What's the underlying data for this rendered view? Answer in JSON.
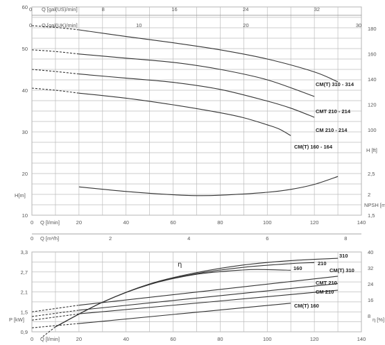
{
  "top_axis_us": {
    "label": "Q [gal(US)/min]",
    "ticks": [
      "0",
      "8",
      "16",
      "24",
      "32"
    ],
    "values": [
      0,
      8,
      16,
      24,
      32
    ]
  },
  "top_axis_uk": {
    "label": "Q [gal(UK)/min]",
    "ticks": [
      "0",
      "10",
      "20",
      "30"
    ],
    "values": [
      0,
      10,
      20,
      30
    ]
  },
  "mid_axis_m3h": {
    "label": "Q [m³/h]",
    "ticks": [
      "0",
      "2",
      "4",
      "6",
      "8"
    ],
    "values": [
      0,
      2,
      4,
      6,
      8
    ]
  },
  "chart_data": [
    {
      "type": "line",
      "title": "",
      "xlabel": "Q [l/min]",
      "ylabel": "H[m]",
      "ylabel_right": "H [ft]",
      "ylabel_right2": "NPSH [m]",
      "xlim": [
        0,
        140
      ],
      "ylim": [
        10,
        60
      ],
      "x_ticks": [
        "0",
        "20",
        "40",
        "60",
        "80",
        "100",
        "120",
        "140"
      ],
      "y_ticks": [
        "10",
        "20",
        "30",
        "40",
        "50",
        "60"
      ],
      "right_ft_ticks": [
        "100",
        "120",
        "140",
        "160",
        "180"
      ],
      "right_npsh_ticks": [
        "1,5",
        "2",
        "2,5"
      ],
      "series": [
        {
          "name": "CM(T) 310 - 314",
          "x": [
            20,
            40,
            60,
            80,
            100,
            120,
            130
          ],
          "y": [
            54.5,
            52.9,
            51.4,
            49.7,
            47.5,
            44.4,
            42.0
          ],
          "extrap_x": [
            0,
            10,
            20
          ],
          "extrap_y": [
            55.5,
            55.1,
            54.5
          ]
        },
        {
          "name": "CMT 210 - 214",
          "x": [
            20,
            40,
            60,
            80,
            100,
            120
          ],
          "y": [
            48.7,
            47.7,
            46.7,
            45.0,
            42.5,
            38.5
          ],
          "extrap_x": [
            0,
            10,
            20
          ],
          "extrap_y": [
            49.7,
            49.3,
            48.7
          ]
        },
        {
          "name": "CM 210 - 214",
          "x": [
            20,
            40,
            60,
            80,
            100,
            110,
            120
          ],
          "y": [
            43.9,
            42.9,
            41.9,
            40.2,
            37.4,
            35.7,
            33.5
          ],
          "extrap_x": [
            0,
            10,
            20
          ],
          "extrap_y": [
            45.0,
            44.5,
            43.9
          ]
        },
        {
          "name": "CM(T) 160 - 164",
          "x": [
            20,
            40,
            60,
            80,
            90,
            100,
            105,
            110
          ],
          "y": [
            39.3,
            38.1,
            36.5,
            34.6,
            33.4,
            31.7,
            30.7,
            29.1
          ],
          "extrap_x": [
            0,
            10,
            20
          ],
          "extrap_y": [
            40.5,
            40.0,
            39.3
          ]
        },
        {
          "name": "NPSH",
          "x": [
            20,
            40,
            60,
            70,
            80,
            100,
            110,
            120,
            130
          ],
          "y": [
            16.8,
            15.7,
            14.9,
            14.7,
            14.8,
            15.5,
            16.2,
            17.4,
            19.3
          ]
        }
      ]
    },
    {
      "type": "line",
      "title": "",
      "xlabel": "Q [l/min]",
      "ylabel": "P [kW]",
      "ylabel_right": "η [%]",
      "xlim": [
        0,
        140
      ],
      "ylim": [
        0.9,
        3.3
      ],
      "x_ticks": [
        "0",
        "20",
        "40",
        "60",
        "80",
        "100",
        "120",
        "140"
      ],
      "y_ticks": [
        "0,9",
        "1,5",
        "2,1",
        "2,7",
        "3,3"
      ],
      "right_eta_ticks": [
        "8",
        "16",
        "24",
        "32",
        "40"
      ],
      "eta_label": "η",
      "series": [
        {
          "name": "310",
          "x": [
            10,
            30,
            50,
            70,
            90,
            110,
            130
          ],
          "y": [
            1.05,
            1.79,
            2.34,
            2.68,
            2.91,
            3.04,
            3.11
          ],
          "kind": "eta"
        },
        {
          "name": "210",
          "x": [
            10,
            30,
            50,
            70,
            90,
            110,
            120
          ],
          "y": [
            1.05,
            1.79,
            2.33,
            2.65,
            2.84,
            2.95,
            2.98
          ],
          "kind": "eta"
        },
        {
          "name": "160",
          "x": [
            10,
            30,
            50,
            70,
            90,
            100,
            110
          ],
          "y": [
            1.05,
            1.79,
            2.32,
            2.63,
            2.76,
            2.77,
            2.75
          ],
          "kind": "eta"
        },
        {
          "name": "CM(T) 310",
          "x": [
            20,
            130
          ],
          "y": [
            1.7,
            2.57
          ],
          "extrap_x": [
            0,
            20
          ],
          "extrap_y": [
            1.5,
            1.7
          ]
        },
        {
          "name": "CMT 210",
          "x": [
            20,
            130
          ],
          "y": [
            1.55,
            2.35
          ],
          "extrap_x": [
            0,
            20
          ],
          "extrap_y": [
            1.36,
            1.55
          ]
        },
        {
          "name": "CM 210",
          "x": [
            20,
            130
          ],
          "y": [
            1.44,
            2.15
          ],
          "extrap_x": [
            0,
            20
          ],
          "extrap_y": [
            1.25,
            1.44
          ]
        },
        {
          "name": "CM(T) 160",
          "x": [
            20,
            110
          ],
          "y": [
            1.15,
            1.76
          ],
          "extrap_x": [
            0,
            20
          ],
          "extrap_y": [
            1.02,
            1.15
          ]
        }
      ]
    }
  ]
}
